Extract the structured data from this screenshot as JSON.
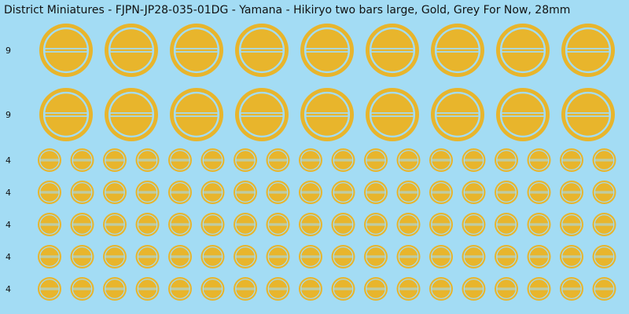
{
  "header": {
    "title": "District Miniatures - FJPN-JP28-035-01DG - Yamana - Hikiryo two bars large, Gold, Grey For Now, 28mm"
  },
  "rows": [
    {
      "label": "9"
    },
    {
      "label": "9"
    },
    {
      "label": "4"
    },
    {
      "label": "4"
    },
    {
      "label": "4"
    },
    {
      "label": "4"
    },
    {
      "label": "4"
    }
  ]
}
